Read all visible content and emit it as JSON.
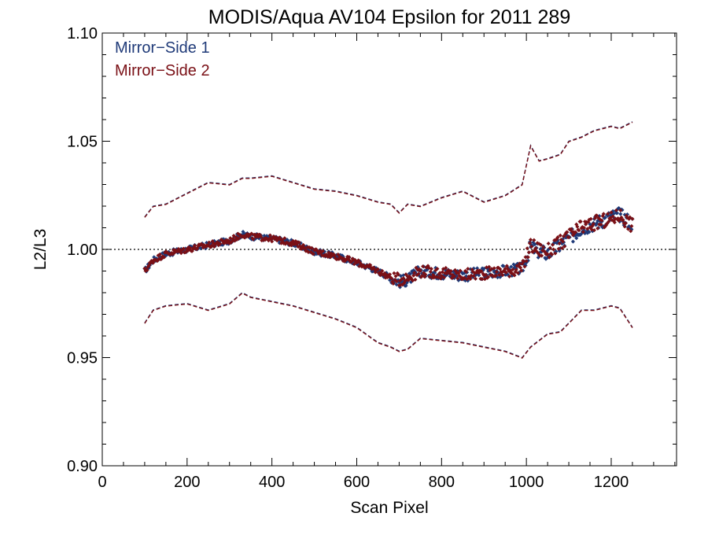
{
  "chart_data": {
    "type": "scatter",
    "title": "MODIS/Aqua AV104 Epsilon for 2011 289",
    "xlabel": "Scan Pixel",
    "ylabel": "L2/L3",
    "xlim": [
      0,
      1354
    ],
    "ylim": [
      0.9,
      1.1
    ],
    "xticks": [
      "0",
      "200",
      "400",
      "600",
      "800",
      "1000",
      "1200"
    ],
    "xtick_values": [
      0,
      200,
      400,
      600,
      800,
      1000,
      1200
    ],
    "yticks": [
      "0.90",
      "0.95",
      "1.00",
      "1.05",
      "1.10"
    ],
    "ytick_values": [
      0.9,
      0.95,
      1.0,
      1.05,
      1.1
    ],
    "reference_line": 1.0,
    "legend_position": "top-left",
    "colors": {
      "ms1": "#1f3a78",
      "ms2": "#7a1016",
      "axis": "#000000"
    },
    "series": [
      {
        "name": "Mirror−Side 1",
        "color": "#1f3a78",
        "x": [
          100,
          120,
          150,
          200,
          250,
          300,
          330,
          350,
          400,
          450,
          500,
          550,
          600,
          650,
          680,
          700,
          720,
          750,
          800,
          850,
          900,
          950,
          990,
          1010,
          1030,
          1050,
          1080,
          1100,
          1130,
          1160,
          1200,
          1220,
          1250
        ],
        "mean": [
          0.99,
          0.995,
          0.998,
          1.0,
          1.002,
          1.004,
          1.007,
          1.006,
          1.005,
          1.003,
          0.999,
          0.997,
          0.994,
          0.99,
          0.987,
          0.985,
          0.986,
          0.99,
          0.989,
          0.988,
          0.989,
          0.99,
          0.991,
          1.001,
          0.999,
          0.998,
          1.002,
          1.005,
          1.01,
          1.012,
          1.015,
          1.016,
          1.012
        ],
        "upper": [
          1.015,
          1.02,
          1.021,
          1.026,
          1.031,
          1.03,
          1.033,
          1.033,
          1.034,
          1.031,
          1.028,
          1.027,
          1.025,
          1.022,
          1.021,
          1.017,
          1.021,
          1.02,
          1.024,
          1.027,
          1.022,
          1.025,
          1.03,
          1.048,
          1.041,
          1.042,
          1.044,
          1.05,
          1.052,
          1.055,
          1.057,
          1.056,
          1.059
        ],
        "lower": [
          0.966,
          0.972,
          0.974,
          0.975,
          0.972,
          0.975,
          0.98,
          0.978,
          0.976,
          0.974,
          0.971,
          0.968,
          0.964,
          0.957,
          0.955,
          0.953,
          0.954,
          0.959,
          0.958,
          0.957,
          0.955,
          0.953,
          0.95,
          0.955,
          0.958,
          0.961,
          0.962,
          0.966,
          0.972,
          0.972,
          0.974,
          0.973,
          0.964
        ]
      },
      {
        "name": "Mirror−Side 2",
        "color": "#7a1016",
        "x": [
          100,
          120,
          150,
          200,
          250,
          300,
          330,
          350,
          400,
          450,
          500,
          550,
          600,
          650,
          680,
          700,
          720,
          750,
          800,
          850,
          900,
          950,
          990,
          1010,
          1030,
          1050,
          1080,
          1100,
          1130,
          1160,
          1200,
          1220,
          1250
        ],
        "mean": [
          0.99,
          0.995,
          0.998,
          1.0,
          1.002,
          1.004,
          1.007,
          1.006,
          1.005,
          1.003,
          0.999,
          0.997,
          0.994,
          0.99,
          0.987,
          0.986,
          0.987,
          0.99,
          0.989,
          0.988,
          0.989,
          0.99,
          0.991,
          1.002,
          1.0,
          0.999,
          1.003,
          1.006,
          1.01,
          1.012,
          1.014,
          1.016,
          1.011
        ],
        "upper": [
          1.015,
          1.02,
          1.021,
          1.026,
          1.031,
          1.03,
          1.033,
          1.033,
          1.034,
          1.031,
          1.028,
          1.027,
          1.025,
          1.022,
          1.021,
          1.017,
          1.021,
          1.02,
          1.024,
          1.027,
          1.022,
          1.025,
          1.03,
          1.048,
          1.041,
          1.042,
          1.044,
          1.05,
          1.052,
          1.055,
          1.057,
          1.056,
          1.059
        ],
        "lower": [
          0.966,
          0.972,
          0.974,
          0.975,
          0.972,
          0.975,
          0.98,
          0.978,
          0.976,
          0.974,
          0.971,
          0.968,
          0.964,
          0.957,
          0.955,
          0.953,
          0.954,
          0.959,
          0.958,
          0.957,
          0.955,
          0.953,
          0.95,
          0.955,
          0.958,
          0.961,
          0.962,
          0.966,
          0.972,
          0.972,
          0.974,
          0.973,
          0.964
        ]
      }
    ]
  }
}
